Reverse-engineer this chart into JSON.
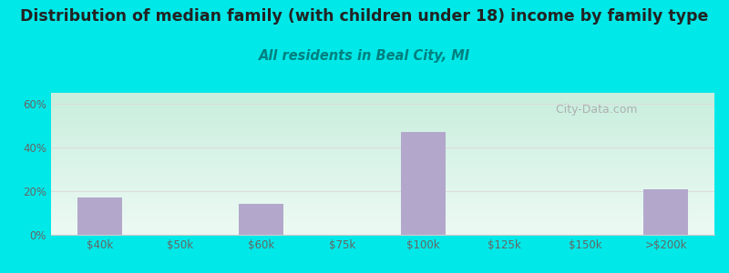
{
  "title": "Distribution of median family (with children under 18) income by family type",
  "subtitle": "All residents in Beal City, MI",
  "categories": [
    "$40k",
    "$50k",
    "$60k",
    "$75k",
    "$100k",
    "$125k",
    "$150k",
    ">$200k"
  ],
  "values": [
    17.0,
    0.0,
    14.0,
    0.0,
    47.0,
    0.0,
    0.0,
    21.0
  ],
  "bar_color": "#b3a8cc",
  "bar_width": 0.55,
  "ylim": [
    0,
    65
  ],
  "yticks": [
    0,
    20,
    40,
    60
  ],
  "ytick_labels": [
    "0%",
    "20%",
    "40%",
    "60%"
  ],
  "bg_outer_color": "#00e8e8",
  "bg_inner_top_left": "#c8eedd",
  "bg_inner_bottom_right": "#edfaf4",
  "title_color": "#222222",
  "subtitle_color": "#008080",
  "axis_label_color": "#666666",
  "grid_color": "#dddddd",
  "title_fontsize": 12.5,
  "subtitle_fontsize": 10.5,
  "tick_fontsize": 8.5,
  "watermark_text": "  City-Data.com",
  "watermark_color": "#aaaaaa"
}
